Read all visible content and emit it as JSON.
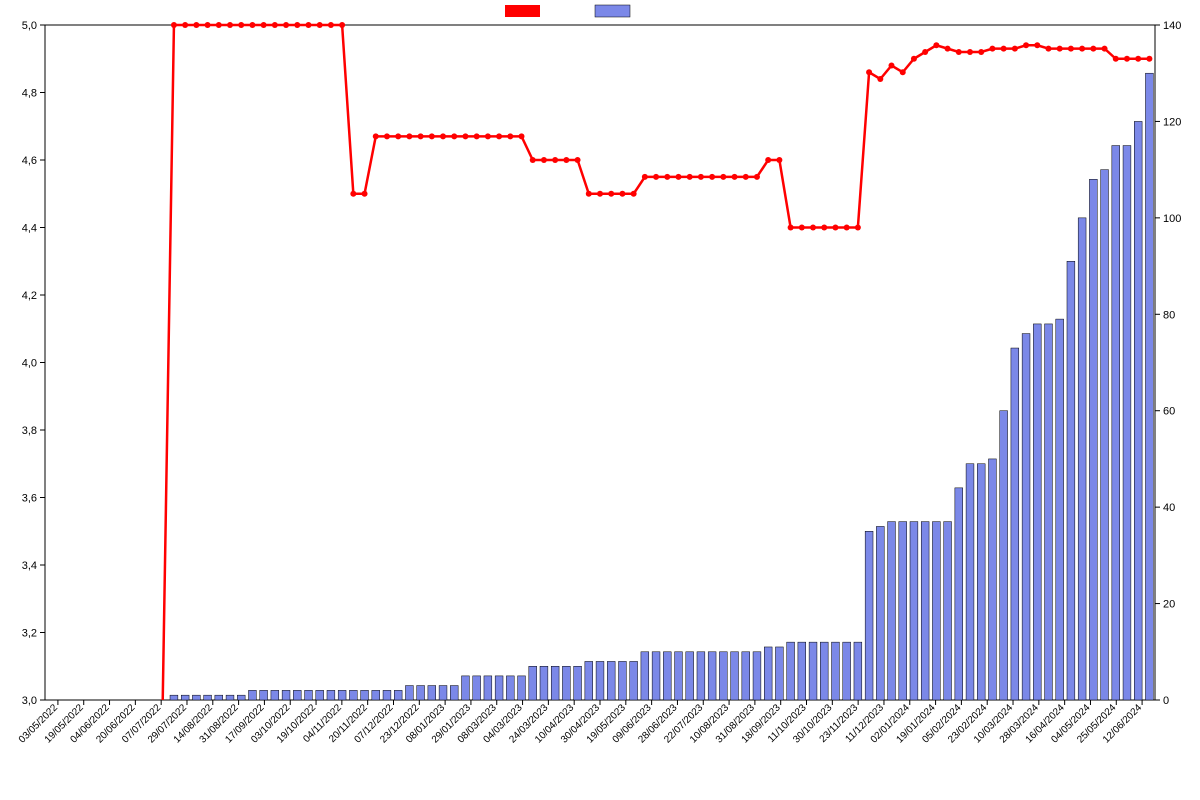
{
  "chart": {
    "type": "bar+line",
    "background_color": "#ffffff",
    "plot_border_color": "#000000",
    "plot_border_width": 1,
    "grid": false,
    "x": {
      "labels": [
        "03/05/2022",
        "19/05/2022",
        "04/06/2022",
        "20/06/2022",
        "07/07/2022",
        "29/07/2022",
        "14/08/2022",
        "31/08/2022",
        "17/09/2022",
        "03/10/2022",
        "19/10/2022",
        "04/11/2022",
        "20/11/2022",
        "07/12/2022",
        "23/12/2022",
        "08/01/2023",
        "29/01/2023",
        "08/03/2023",
        "04/03/2023",
        "24/03/2023",
        "10/04/2023",
        "30/04/2023",
        "19/05/2023",
        "09/06/2023",
        "28/06/2023",
        "22/07/2023",
        "10/08/2023",
        "31/08/2023",
        "18/09/2023",
        "11/10/2023",
        "30/10/2023",
        "23/11/2023",
        "11/12/2023",
        "02/01/2024",
        "19/01/2024",
        "05/02/2024",
        "23/02/2024",
        "10/03/2024",
        "28/03/2024",
        "16/04/2024",
        "04/05/2024",
        "25/05/2024",
        "12/06/2024"
      ]
    },
    "y_left": {
      "min": 3.0,
      "max": 5.0,
      "ticks": [
        3.0,
        3.2,
        3.4,
        3.6,
        3.8,
        4.0,
        4.2,
        4.4,
        4.6,
        4.8,
        5.0
      ],
      "tick_labels": [
        "3,0",
        "3,2",
        "3,4",
        "3,6",
        "3,8",
        "4,0",
        "4,2",
        "4,4",
        "4,6",
        "4,8",
        "5,0"
      ],
      "label_fontsize": 11
    },
    "y_right": {
      "min": 0,
      "max": 140,
      "ticks": [
        0,
        20,
        40,
        60,
        80,
        100,
        120,
        140
      ],
      "tick_labels": [
        "0",
        "20",
        "40",
        "60",
        "80",
        "100",
        "120",
        "140"
      ],
      "label_fontsize": 11
    },
    "bars": {
      "axis": "right",
      "fill_color": "#7b88e8",
      "border_color": "#000000",
      "border_width": 0.5,
      "width_ratio": 0.7,
      "values": [
        0,
        0,
        0,
        0,
        0,
        0,
        0,
        0,
        0,
        0,
        0,
        1,
        1,
        1,
        1,
        1,
        1,
        1,
        2,
        2,
        2,
        2,
        2,
        2,
        2,
        2,
        2,
        2,
        2,
        2,
        2,
        2,
        3,
        3,
        3,
        3,
        3,
        5,
        5,
        5,
        5,
        5,
        5,
        7,
        7,
        7,
        7,
        7,
        8,
        8,
        8,
        8,
        8,
        10,
        10,
        10,
        10,
        10,
        10,
        10,
        10,
        10,
        10,
        10,
        11,
        11,
        12,
        12,
        12,
        12,
        12,
        12,
        12,
        35,
        36,
        37,
        37,
        37,
        37,
        37,
        37,
        44,
        49,
        49,
        50,
        60,
        73,
        76,
        78,
        78,
        79,
        91,
        100,
        108,
        110,
        115,
        115,
        120,
        130
      ]
    },
    "line": {
      "axis": "left",
      "color": "#ff0000",
      "width": 2.5,
      "marker": "circle",
      "marker_size": 4,
      "marker_fill": "#ff0000",
      "values": [
        null,
        null,
        null,
        null,
        null,
        null,
        null,
        null,
        null,
        null,
        null,
        5.0,
        5.0,
        5.0,
        5.0,
        5.0,
        5.0,
        5.0,
        5.0,
        5.0,
        5.0,
        5.0,
        5.0,
        5.0,
        5.0,
        5.0,
        5.0,
        4.5,
        4.5,
        4.67,
        4.67,
        4.67,
        4.67,
        4.67,
        4.67,
        4.67,
        4.67,
        4.67,
        4.67,
        4.67,
        4.67,
        4.67,
        4.67,
        4.6,
        4.6,
        4.6,
        4.6,
        4.6,
        4.5,
        4.5,
        4.5,
        4.5,
        4.5,
        4.55,
        4.55,
        4.55,
        4.55,
        4.55,
        4.55,
        4.55,
        4.55,
        4.55,
        4.55,
        4.55,
        4.6,
        4.6,
        4.4,
        4.4,
        4.4,
        4.4,
        4.4,
        4.4,
        4.4,
        4.86,
        4.84,
        4.88,
        4.86,
        4.9,
        4.92,
        4.94,
        4.93,
        4.92,
        4.92,
        4.92,
        4.93,
        4.93,
        4.93,
        4.94,
        4.94,
        4.93,
        4.93,
        4.93,
        4.93,
        4.93,
        4.93,
        4.9,
        4.9,
        4.9,
        4.9
      ]
    },
    "legend": {
      "items": [
        {
          "type": "line",
          "color": "#ff0000",
          "label": ""
        },
        {
          "type": "bar",
          "color": "#7b88e8",
          "label": ""
        }
      ],
      "position": "top-center"
    }
  }
}
